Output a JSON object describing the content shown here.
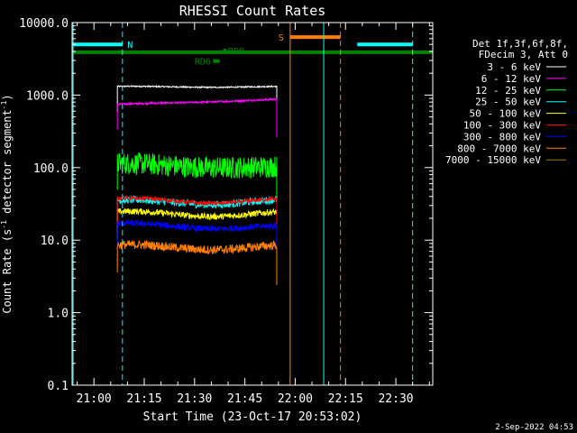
{
  "chart_data": {
    "type": "line",
    "title": "RHESSI Count Rates",
    "xlabel": "Start Time (23-Oct-17 20:53:02)",
    "ylabel_main": "Count Rate (s",
    "ylabel_sup": "-1",
    "ylabel_rest": " detector segment",
    "ylabel_sup2": "-1",
    "ylabel_close": ")",
    "y_scale": "log",
    "ylim": [
      0.1,
      10000
    ],
    "xlim_minutes": [
      -6.5,
      101
    ],
    "x_ticks": [
      {
        "m": 0,
        "label": "21:00"
      },
      {
        "m": 15,
        "label": "21:15"
      },
      {
        "m": 30,
        "label": "21:30"
      },
      {
        "m": 45,
        "label": "21:45"
      },
      {
        "m": 60,
        "label": "22:00"
      },
      {
        "m": 75,
        "label": "22:15"
      },
      {
        "m": 90,
        "label": "22:30"
      }
    ],
    "y_ticks": [
      {
        "v": 0.1,
        "label": "0.1"
      },
      {
        "v": 1,
        "label": "1.0"
      },
      {
        "v": 10,
        "label": "10.0"
      },
      {
        "v": 100,
        "label": "100.0"
      },
      {
        "v": 1000,
        "label": "1000.0"
      },
      {
        "v": 10000,
        "label": "10000.0"
      }
    ],
    "legend": {
      "header1": "Det 1f,3f,6f,8f,",
      "header2": "FDecim 3, Att 0",
      "entries": [
        {
          "label": "3 - 6 keV",
          "color": "#ffffff"
        },
        {
          "label": "6 - 12 keV",
          "color": "#ff00ff"
        },
        {
          "label": "12 - 25 keV",
          "color": "#00ff00"
        },
        {
          "label": "25 - 50 keV",
          "color": "#00ffff"
        },
        {
          "label": "50 - 100 keV",
          "color": "#ffff00"
        },
        {
          "label": "100 - 300 keV",
          "color": "#ff0000"
        },
        {
          "label": "300 - 800 keV",
          "color": "#0000ff"
        },
        {
          "label": "800 - 7000 keV",
          "color": "#ff8000"
        },
        {
          "label": "7000 - 15000 keV",
          "color": "#a07800"
        }
      ]
    },
    "data_window_minutes": [
      7.0,
      54.5
    ],
    "series": [
      {
        "name": "3 - 6 keV",
        "color": "#ffffff",
        "level_start": 1300,
        "level_end": 1300,
        "wave": 0.03,
        "noise": 0.02
      },
      {
        "name": "6 - 12 keV",
        "color": "#ff00ff",
        "level_start": 740,
        "level_end": 870,
        "wave": 0.02,
        "noise": 0.03
      },
      {
        "name": "12 - 25 keV",
        "color": "#00ff00",
        "level_start": 110,
        "level_end": 100,
        "wave": 0.08,
        "noise": 0.35
      },
      {
        "name": "25 - 50 keV",
        "color": "#00ffff",
        "level_start": 33,
        "level_end": 34,
        "wave": 0.15,
        "noise": 0.12
      },
      {
        "name": "50 - 100 keV",
        "color": "#ffff00",
        "level_start": 23,
        "level_end": 23,
        "wave": 0.15,
        "noise": 0.1
      },
      {
        "name": "100 - 300 keV",
        "color": "#ff0000",
        "level_start": 35,
        "level_end": 35,
        "wave": 0.15,
        "noise": 0.06
      },
      {
        "name": "300 - 800 keV",
        "color": "#0000ff",
        "level_start": 16,
        "level_end": 15,
        "wave": 0.13,
        "noise": 0.1
      },
      {
        "name": "800 - 7000 keV",
        "color": "#ff8000",
        "level_start": 8,
        "level_end": 8,
        "wave": 0.15,
        "noise": 0.14
      }
    ],
    "state_bars": [
      {
        "label": "N",
        "color": "#00ffff",
        "start_m": -6.5,
        "end_m": 8.5,
        "level": 5000,
        "label_m": 10
      },
      {
        "label": "",
        "color": "#00ffff",
        "start_m": 78.5,
        "end_m": 95,
        "level": 5000,
        "label_m": null
      },
      {
        "label": "S",
        "color": "#ff8000",
        "start_m": 58.5,
        "end_m": 73.5,
        "level": 6300,
        "label_m": 55
      },
      {
        "label": "",
        "color": "#008000",
        "start_m": -6.5,
        "end_m": 101,
        "level": 3900,
        "label_m": null
      },
      {
        "label": "RD0",
        "color": "#008000",
        "start_m": 38.5,
        "end_m": 39.5,
        "level": 4100,
        "label_m": 40
      },
      {
        "label": "RD6",
        "color": "#008000",
        "start_m": 35.5,
        "end_m": 37.5,
        "level": 2950,
        "label_m": 30
      }
    ],
    "vlines": [
      {
        "m": -6.2,
        "color": "#00ffff",
        "dash": false
      },
      {
        "m": 8.5,
        "color": "#00ffff",
        "dash": true
      },
      {
        "m": 58.5,
        "color": "#ff8000",
        "dash": false
      },
      {
        "m": 68.5,
        "color": "#00ffff",
        "dash": false
      },
      {
        "m": 73.5,
        "color": "#ff8000",
        "dash": true
      },
      {
        "m": 95,
        "color": "#00ffff",
        "dash": true
      }
    ]
  },
  "footer": {
    "date": "2-Sep-2022 04:53"
  }
}
